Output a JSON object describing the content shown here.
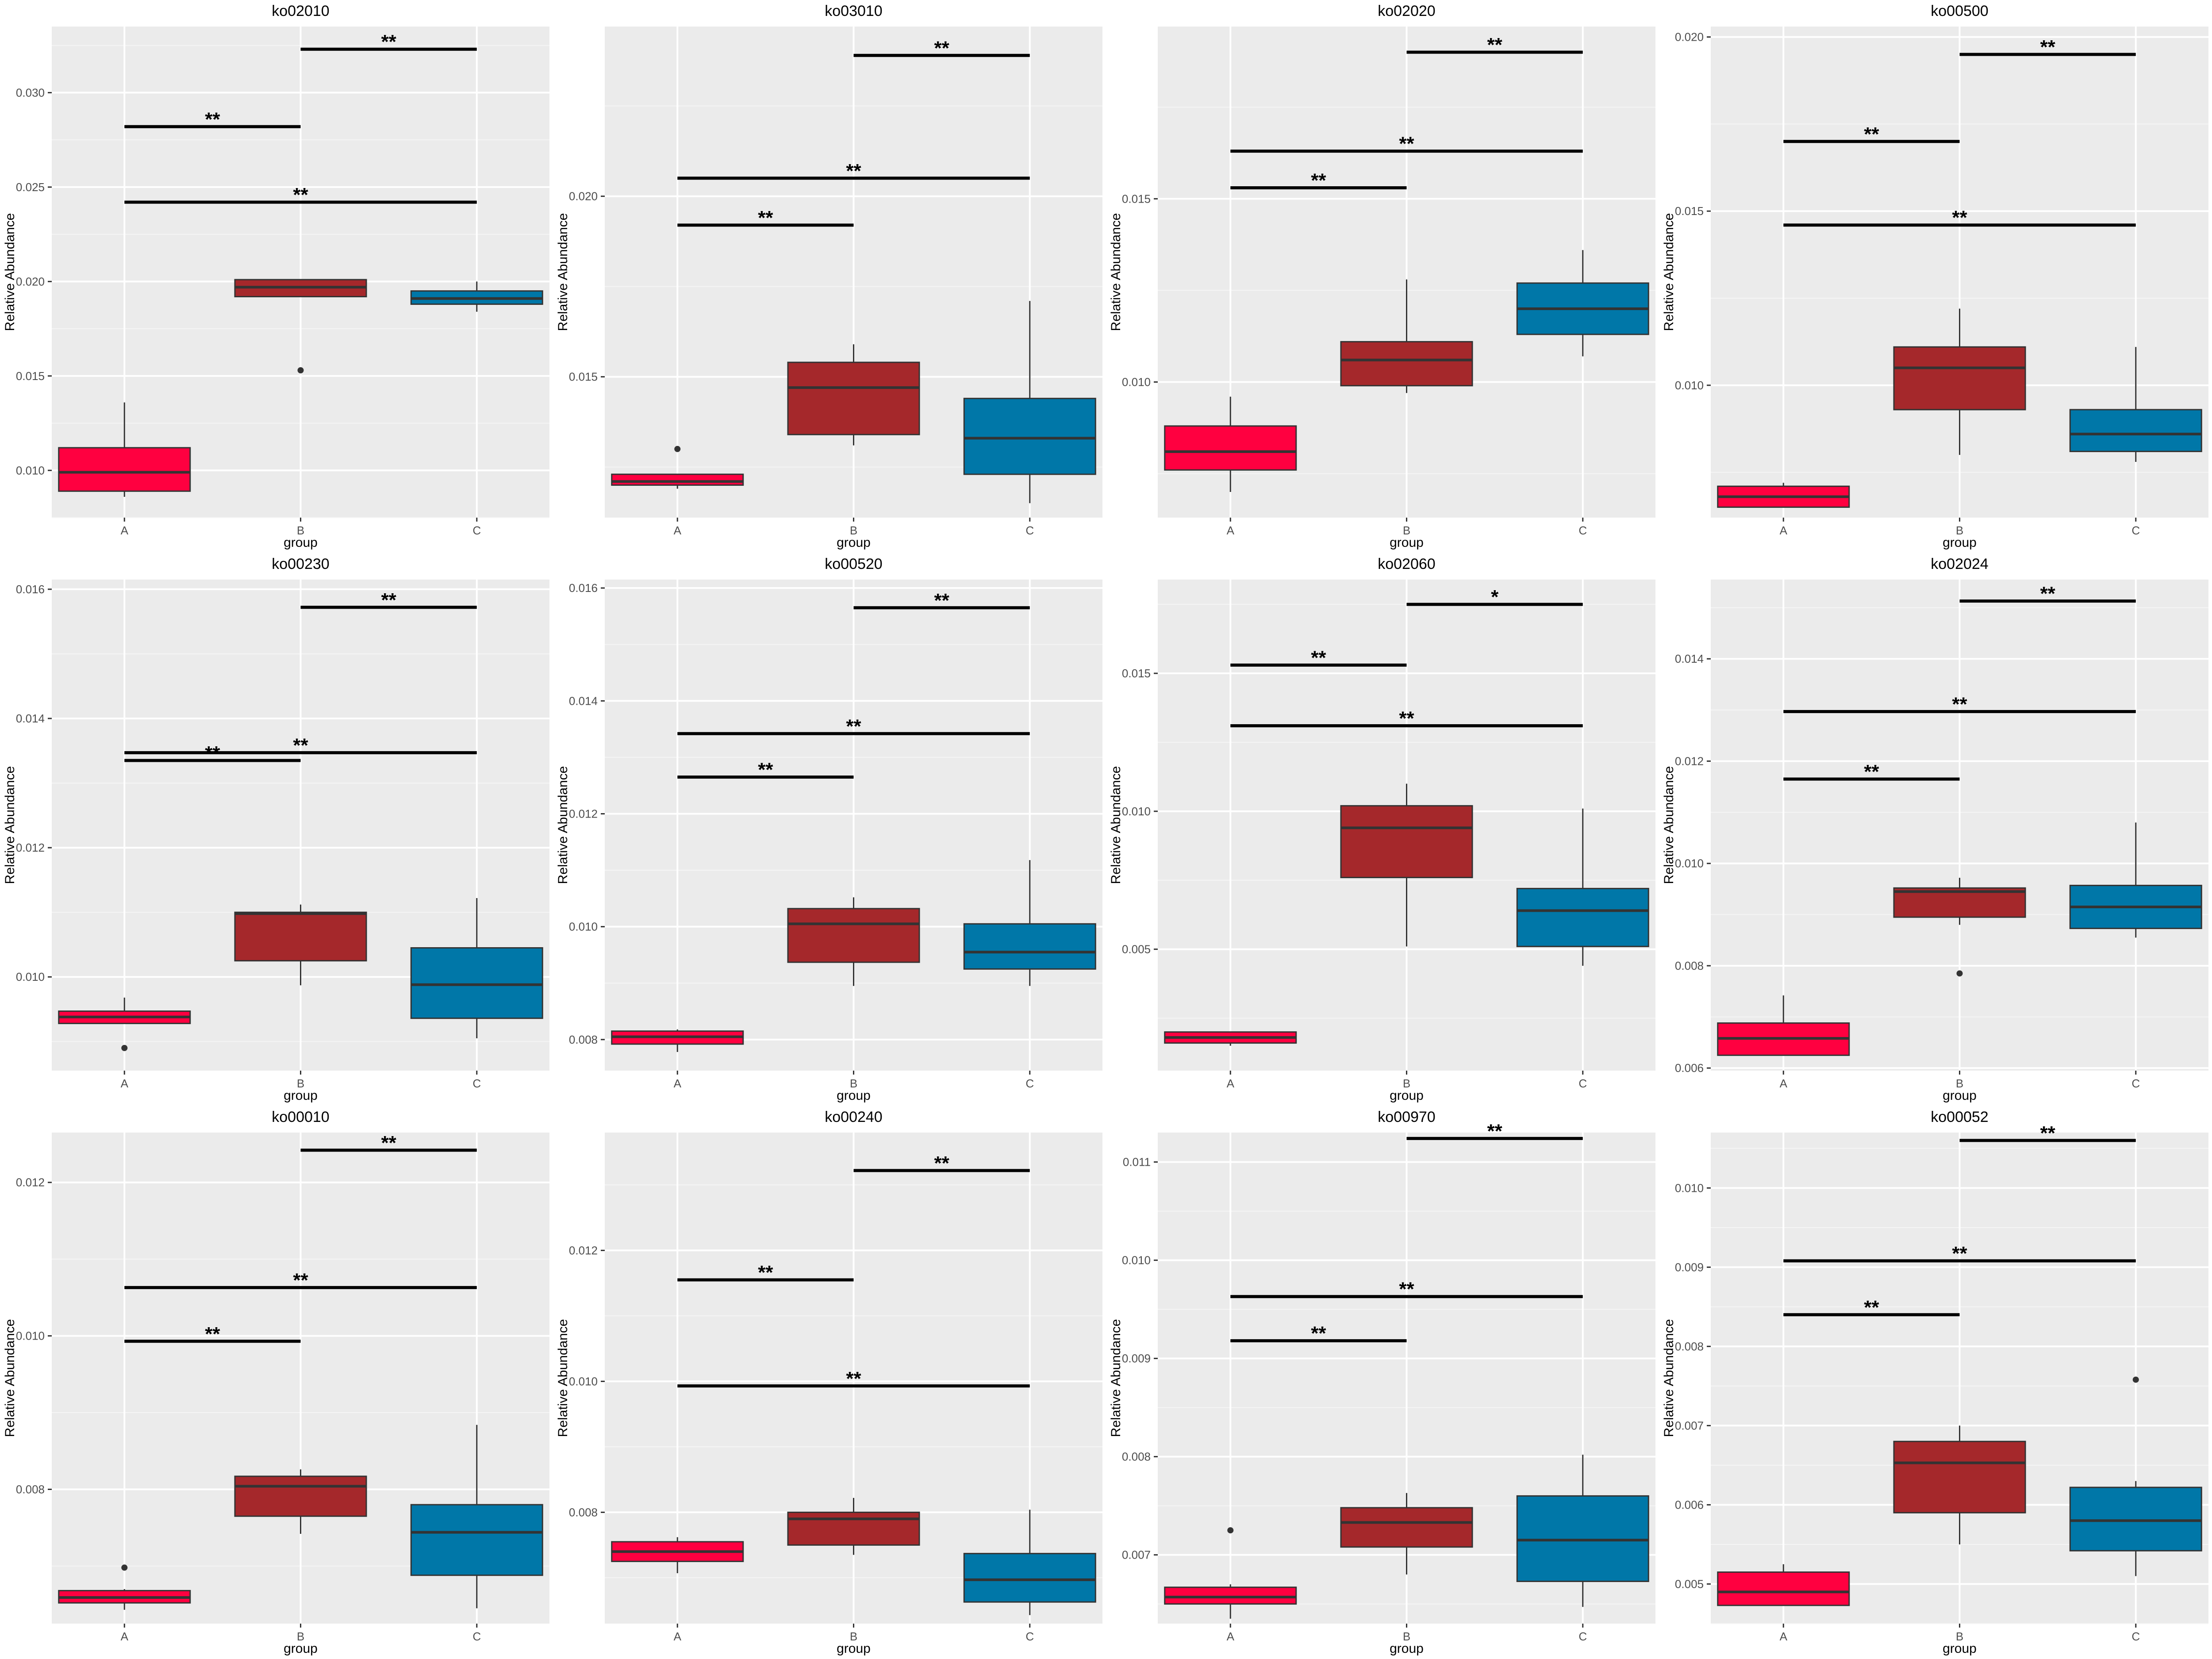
{
  "colors": {
    "panel_bg": "#EBEBEB",
    "grid_major": "#FFFFFF",
    "grid_minor": "#F5F5F5",
    "A": "#FF0040",
    "B": "#A5282B",
    "C": "#0077A8",
    "box_line": "#333333",
    "bracket": "#000000",
    "text": "#000000",
    "tick_text": "#4D4D4D"
  },
  "chart_data": [
    {
      "type": "box",
      "title": "ko02010",
      "xlabel": "group",
      "ylabel": "Relative Abundance",
      "categories": [
        "A",
        "B",
        "C"
      ],
      "ylim": [
        0.0075,
        0.0335
      ],
      "yticks": [
        "0.010",
        "0.015",
        "0.020",
        "0.025",
        "0.030"
      ],
      "boxes": [
        {
          "group": "A",
          "min": 0.0086,
          "q1": 0.0089,
          "median": 0.0099,
          "q3": 0.0112,
          "max": 0.0136,
          "outliers": []
        },
        {
          "group": "B",
          "min": 0.0192,
          "q1": 0.0192,
          "median": 0.0197,
          "q3": 0.0201,
          "max": 0.0201,
          "outliers": [
            0.0153
          ]
        },
        {
          "group": "C",
          "min": 0.0184,
          "q1": 0.0188,
          "median": 0.0191,
          "q3": 0.0195,
          "max": 0.02,
          "outliers": []
        }
      ],
      "brackets": [
        {
          "from": "A",
          "to": "C",
          "y": 0.0242,
          "label": "**"
        },
        {
          "from": "A",
          "to": "B",
          "y": 0.0282,
          "label": "**"
        },
        {
          "from": "B",
          "to": "C",
          "y": 0.0323,
          "label": "**"
        }
      ]
    },
    {
      "type": "box",
      "title": "ko03010",
      "xlabel": "group",
      "ylabel": "Relative Abundance",
      "categories": [
        "A",
        "B",
        "C"
      ],
      "ylim": [
        0.0111,
        0.0247
      ],
      "yticks": [
        "0.015",
        "0.020"
      ],
      "boxes": [
        {
          "group": "A",
          "min": 0.0119,
          "q1": 0.012,
          "median": 0.0121,
          "q3": 0.0123,
          "max": 0.0123,
          "outliers": [
            0.013
          ]
        },
        {
          "group": "B",
          "min": 0.0131,
          "q1": 0.0134,
          "median": 0.0147,
          "q3": 0.0154,
          "max": 0.0159,
          "outliers": []
        },
        {
          "group": "C",
          "min": 0.0115,
          "q1": 0.0123,
          "median": 0.0133,
          "q3": 0.0144,
          "max": 0.0171,
          "outliers": []
        }
      ],
      "brackets": [
        {
          "from": "A",
          "to": "B",
          "y": 0.0192,
          "label": "**"
        },
        {
          "from": "A",
          "to": "C",
          "y": 0.0205,
          "label": "**"
        },
        {
          "from": "B",
          "to": "C",
          "y": 0.0239,
          "label": "**"
        }
      ]
    },
    {
      "type": "box",
      "title": "ko02020",
      "xlabel": "group",
      "ylabel": "Relative Abundance",
      "categories": [
        "A",
        "B",
        "C"
      ],
      "ylim": [
        0.0063,
        0.0197
      ],
      "yticks": [
        "0.010",
        "0.015"
      ],
      "boxes": [
        {
          "group": "A",
          "min": 0.007,
          "q1": 0.0076,
          "median": 0.0081,
          "q3": 0.0088,
          "max": 0.0096,
          "outliers": []
        },
        {
          "group": "B",
          "min": 0.0097,
          "q1": 0.0099,
          "median": 0.0106,
          "q3": 0.0111,
          "max": 0.0128,
          "outliers": []
        },
        {
          "group": "C",
          "min": 0.0107,
          "q1": 0.0113,
          "median": 0.012,
          "q3": 0.0127,
          "max": 0.0136,
          "outliers": []
        }
      ],
      "brackets": [
        {
          "from": "A",
          "to": "B",
          "y": 0.0153,
          "label": "**"
        },
        {
          "from": "A",
          "to": "C",
          "y": 0.0163,
          "label": "**"
        },
        {
          "from": "B",
          "to": "C",
          "y": 0.019,
          "label": "**"
        }
      ]
    },
    {
      "type": "box",
      "title": "ko00500",
      "xlabel": "group",
      "ylabel": "Relative Abundance",
      "categories": [
        "A",
        "B",
        "C"
      ],
      "ylim": [
        0.0062,
        0.0203
      ],
      "yticks": [
        "0.010",
        "0.015",
        "0.020"
      ],
      "boxes": [
        {
          "group": "A",
          "min": 0.0065,
          "q1": 0.0065,
          "median": 0.0068,
          "q3": 0.0071,
          "max": 0.0072,
          "outliers": []
        },
        {
          "group": "B",
          "min": 0.008,
          "q1": 0.0093,
          "median": 0.0105,
          "q3": 0.0111,
          "max": 0.0122,
          "outliers": []
        },
        {
          "group": "C",
          "min": 0.0078,
          "q1": 0.0081,
          "median": 0.0086,
          "q3": 0.0093,
          "max": 0.0111,
          "outliers": []
        }
      ],
      "brackets": [
        {
          "from": "A",
          "to": "C",
          "y": 0.0146,
          "label": "**"
        },
        {
          "from": "A",
          "to": "B",
          "y": 0.017,
          "label": "**"
        },
        {
          "from": "B",
          "to": "C",
          "y": 0.0195,
          "label": "**"
        }
      ]
    },
    {
      "type": "box",
      "title": "ko00230",
      "xlabel": "group",
      "ylabel": "Relative Abundance",
      "categories": [
        "A",
        "B",
        "C"
      ],
      "ylim": [
        0.00855,
        0.01615
      ],
      "yticks": [
        "0.010",
        "0.012",
        "0.014",
        "0.016"
      ],
      "boxes": [
        {
          "group": "A",
          "min": 0.00928,
          "q1": 0.00928,
          "median": 0.00938,
          "q3": 0.00947,
          "max": 0.00968,
          "outliers": [
            0.0089
          ]
        },
        {
          "group": "B",
          "min": 0.00987,
          "q1": 0.01025,
          "median": 0.01098,
          "q3": 0.011,
          "max": 0.01112,
          "outliers": []
        },
        {
          "group": "C",
          "min": 0.00905,
          "q1": 0.00936,
          "median": 0.00988,
          "q3": 0.01045,
          "max": 0.01122,
          "outliers": []
        }
      ],
      "brackets": [
        {
          "from": "A",
          "to": "B",
          "y": 0.01335,
          "label": "**"
        },
        {
          "from": "A",
          "to": "C",
          "y": 0.01347,
          "label": "**"
        },
        {
          "from": "B",
          "to": "C",
          "y": 0.01572,
          "label": "**"
        }
      ]
    },
    {
      "type": "box",
      "title": "ko00520",
      "xlabel": "group",
      "ylabel": "Relative Abundance",
      "categories": [
        "A",
        "B",
        "C"
      ],
      "ylim": [
        0.00745,
        0.01615
      ],
      "yticks": [
        "0.008",
        "0.010",
        "0.012",
        "0.014",
        "0.016"
      ],
      "boxes": [
        {
          "group": "A",
          "min": 0.00778,
          "q1": 0.00792,
          "median": 0.00805,
          "q3": 0.00815,
          "max": 0.00818,
          "outliers": []
        },
        {
          "group": "B",
          "min": 0.00895,
          "q1": 0.00937,
          "median": 0.01005,
          "q3": 0.01032,
          "max": 0.01052,
          "outliers": []
        },
        {
          "group": "C",
          "min": 0.00895,
          "q1": 0.00925,
          "median": 0.00955,
          "q3": 0.01005,
          "max": 0.01118,
          "outliers": []
        }
      ],
      "brackets": [
        {
          "from": "A",
          "to": "B",
          "y": 0.01265,
          "label": "**"
        },
        {
          "from": "A",
          "to": "C",
          "y": 0.01342,
          "label": "**"
        },
        {
          "from": "B",
          "to": "C",
          "y": 0.01565,
          "label": "**"
        }
      ]
    },
    {
      "type": "box",
      "title": "ko02060",
      "xlabel": "group",
      "ylabel": "Relative Abundance",
      "categories": [
        "A",
        "B",
        "C"
      ],
      "ylim": [
        0.0006,
        0.0184
      ],
      "yticks": [
        "0.005",
        "0.010",
        "0.015"
      ],
      "boxes": [
        {
          "group": "A",
          "min": 0.0015,
          "q1": 0.0016,
          "median": 0.0018,
          "q3": 0.002,
          "max": 0.002,
          "outliers": []
        },
        {
          "group": "B",
          "min": 0.0051,
          "q1": 0.0076,
          "median": 0.0094,
          "q3": 0.0102,
          "max": 0.011,
          "outliers": []
        },
        {
          "group": "C",
          "min": 0.0044,
          "q1": 0.0051,
          "median": 0.0064,
          "q3": 0.0072,
          "max": 0.0101,
          "outliers": []
        }
      ],
      "brackets": [
        {
          "from": "A",
          "to": "C",
          "y": 0.0131,
          "label": "**"
        },
        {
          "from": "A",
          "to": "B",
          "y": 0.0153,
          "label": "**"
        },
        {
          "from": "B",
          "to": "C",
          "y": 0.0175,
          "label": "*"
        }
      ]
    },
    {
      "type": "box",
      "title": "ko02024",
      "xlabel": "group",
      "ylabel": "Relative Abundance",
      "categories": [
        "A",
        "B",
        "C"
      ],
      "ylim": [
        0.00595,
        0.01555
      ],
      "yticks": [
        "0.006",
        "0.008",
        "0.010",
        "0.012",
        "0.014"
      ],
      "boxes": [
        {
          "group": "A",
          "min": 0.00625,
          "q1": 0.00625,
          "median": 0.00658,
          "q3": 0.00688,
          "max": 0.00742,
          "outliers": []
        },
        {
          "group": "B",
          "min": 0.0088,
          "q1": 0.00895,
          "median": 0.00945,
          "q3": 0.00952,
          "max": 0.00972,
          "outliers": [
            0.00785
          ]
        },
        {
          "group": "C",
          "min": 0.00855,
          "q1": 0.00873,
          "median": 0.00915,
          "q3": 0.00957,
          "max": 0.0108,
          "outliers": []
        }
      ],
      "brackets": [
        {
          "from": "A",
          "to": "B",
          "y": 0.01165,
          "label": "**"
        },
        {
          "from": "A",
          "to": "C",
          "y": 0.01297,
          "label": "**"
        },
        {
          "from": "B",
          "to": "C",
          "y": 0.01513,
          "label": "**"
        }
      ]
    },
    {
      "type": "box",
      "title": "ko00010",
      "xlabel": "group",
      "ylabel": "Relative Abundance",
      "categories": [
        "A",
        "B",
        "C"
      ],
      "ylim": [
        0.00625,
        0.01265
      ],
      "yticks": [
        "0.008",
        "0.010",
        "0.012"
      ],
      "boxes": [
        {
          "group": "A",
          "min": 0.00643,
          "q1": 0.00652,
          "median": 0.00659,
          "q3": 0.00668,
          "max": 0.0067,
          "outliers": [
            0.00698
          ]
        },
        {
          "group": "B",
          "min": 0.00742,
          "q1": 0.00765,
          "median": 0.00804,
          "q3": 0.00817,
          "max": 0.00826,
          "outliers": []
        },
        {
          "group": "C",
          "min": 0.00645,
          "q1": 0.00688,
          "median": 0.00744,
          "q3": 0.0078,
          "max": 0.00884,
          "outliers": []
        }
      ],
      "brackets": [
        {
          "from": "A",
          "to": "B",
          "y": 0.00993,
          "label": "**"
        },
        {
          "from": "A",
          "to": "C",
          "y": 0.01063,
          "label": "**"
        },
        {
          "from": "B",
          "to": "C",
          "y": 0.01242,
          "label": "**"
        }
      ]
    },
    {
      "type": "box",
      "title": "ko00240",
      "xlabel": "group",
      "ylabel": "Relative Abundance",
      "categories": [
        "A",
        "B",
        "C"
      ],
      "ylim": [
        0.0063,
        0.0138
      ],
      "yticks": [
        "0.008",
        "0.010",
        "0.012"
      ],
      "boxes": [
        {
          "group": "A",
          "min": 0.00707,
          "q1": 0.00725,
          "median": 0.0074,
          "q3": 0.00755,
          "max": 0.00762,
          "outliers": []
        },
        {
          "group": "B",
          "min": 0.00735,
          "q1": 0.0075,
          "median": 0.0079,
          "q3": 0.008,
          "max": 0.00822,
          "outliers": []
        },
        {
          "group": "C",
          "min": 0.00643,
          "q1": 0.00663,
          "median": 0.00697,
          "q3": 0.00737,
          "max": 0.00804,
          "outliers": []
        }
      ],
      "brackets": [
        {
          "from": "A",
          "to": "C",
          "y": 0.00993,
          "label": "**"
        },
        {
          "from": "A",
          "to": "B",
          "y": 0.01155,
          "label": "**"
        },
        {
          "from": "B",
          "to": "C",
          "y": 0.01322,
          "label": "**"
        }
      ]
    },
    {
      "type": "box",
      "title": "ko00970",
      "xlabel": "group",
      "ylabel": "Relative Abundance",
      "categories": [
        "A",
        "B",
        "C"
      ],
      "ylim": [
        0.0063,
        0.0113
      ],
      "yticks": [
        "0.007",
        "0.008",
        "0.009",
        "0.010",
        "0.011"
      ],
      "boxes": [
        {
          "group": "A",
          "min": 0.00635,
          "q1": 0.0065,
          "median": 0.00657,
          "q3": 0.00667,
          "max": 0.0067,
          "outliers": [
            0.00725
          ]
        },
        {
          "group": "B",
          "min": 0.0068,
          "q1": 0.00708,
          "median": 0.00733,
          "q3": 0.00748,
          "max": 0.00763,
          "outliers": []
        },
        {
          "group": "C",
          "min": 0.00647,
          "q1": 0.00673,
          "median": 0.00715,
          "q3": 0.0076,
          "max": 0.00802,
          "outliers": []
        }
      ],
      "brackets": [
        {
          "from": "A",
          "to": "B",
          "y": 0.00918,
          "label": "**"
        },
        {
          "from": "A",
          "to": "C",
          "y": 0.00963,
          "label": "**"
        },
        {
          "from": "B",
          "to": "C",
          "y": 0.01124,
          "label": "**"
        }
      ]
    },
    {
      "type": "box",
      "title": "ko00052",
      "xlabel": "group",
      "ylabel": "Relative Abundance",
      "categories": [
        "A",
        "B",
        "C"
      ],
      "ylim": [
        0.0045,
        0.0107
      ],
      "yticks": [
        "0.005",
        "0.006",
        "0.007",
        "0.008",
        "0.009",
        "0.010"
      ],
      "boxes": [
        {
          "group": "A",
          "min": 0.00473,
          "q1": 0.00473,
          "median": 0.0049,
          "q3": 0.00515,
          "max": 0.00525,
          "outliers": []
        },
        {
          "group": "B",
          "min": 0.0055,
          "q1": 0.0059,
          "median": 0.00653,
          "q3": 0.0068,
          "max": 0.007,
          "outliers": []
        },
        {
          "group": "C",
          "min": 0.0051,
          "q1": 0.00542,
          "median": 0.0058,
          "q3": 0.00622,
          "max": 0.0063,
          "outliers": [
            0.00758
          ]
        }
      ],
      "brackets": [
        {
          "from": "A",
          "to": "B",
          "y": 0.0084,
          "label": "**"
        },
        {
          "from": "A",
          "to": "C",
          "y": 0.00908,
          "label": "**"
        },
        {
          "from": "B",
          "to": "C",
          "y": 0.0106,
          "label": "**"
        }
      ]
    }
  ]
}
